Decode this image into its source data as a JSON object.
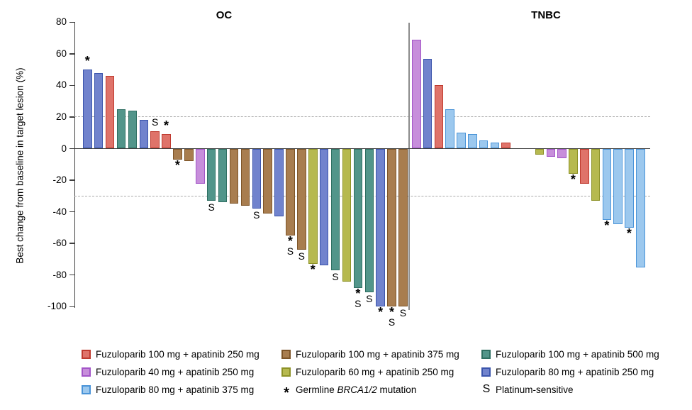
{
  "chart_data": {
    "type": "bar",
    "subtype": "waterfall",
    "title": "",
    "ylabel": "Best change from baseline in target lesion (%)",
    "ylim": [
      -100,
      80
    ],
    "yticks": [
      80,
      60,
      40,
      20,
      0,
      -20,
      -40,
      -60,
      -80,
      -100
    ],
    "reference_lines": [
      20,
      -30
    ],
    "grid": false,
    "legend_position": "bottom",
    "groups": {
      "f100a250": {
        "label": "Fuzuloparib 100 mg + apatinib 250 mg",
        "fill": "#DF736A",
        "border": "#BF3A2F"
      },
      "f100a375": {
        "label": "Fuzuloparib 100 mg + apatinib 375 mg",
        "fill": "#A87D4F",
        "border": "#7D5428"
      },
      "f100a500": {
        "label": "Fuzuloparib 100 mg + apatinib 500 mg",
        "fill": "#52958A",
        "border": "#2E6F62"
      },
      "f40a250": {
        "label": "Fuzuloparib 40 mg + apatinib 250 mg",
        "fill": "#C78EDB",
        "border": "#A355C8"
      },
      "f60a250": {
        "label": "Fuzuloparib 60 mg + apatinib 250 mg",
        "fill": "#B6B94F",
        "border": "#8D9227"
      },
      "f80a250": {
        "label": "Fuzuloparib 80 mg + apatinib 250 mg",
        "fill": "#7183CD",
        "border": "#3B55AC"
      },
      "f80a375": {
        "label": "Fuzuloparib 80 mg + apatinib 375 mg",
        "fill": "#9CC8EE",
        "border": "#4A94D8"
      }
    },
    "symbols": {
      "star_char": "*",
      "star_label": "Germline BRCA1/2 mutation",
      "s_char": "S",
      "s_label": "Platinum-sensitive"
    },
    "panels": [
      {
        "title": "OC",
        "bars": [
          {
            "v": 50,
            "g": "f80a250",
            "star": true
          },
          {
            "v": 48,
            "g": "f80a250"
          },
          {
            "v": 46,
            "g": "f100a250"
          },
          {
            "v": 25,
            "g": "f100a500"
          },
          {
            "v": 24,
            "g": "f100a500"
          },
          {
            "v": 18,
            "g": "f80a250"
          },
          {
            "v": 11,
            "g": "f100a250",
            "s": true
          },
          {
            "v": 9,
            "g": "f100a250",
            "star": true
          },
          {
            "v": -7,
            "g": "f100a375",
            "star": true
          },
          {
            "v": -8,
            "g": "f100a375"
          },
          {
            "v": -22,
            "g": "f40a250"
          },
          {
            "v": -33,
            "g": "f100a500",
            "s": true
          },
          {
            "v": -34,
            "g": "f100a500"
          },
          {
            "v": -35,
            "g": "f100a375"
          },
          {
            "v": -36,
            "g": "f100a375"
          },
          {
            "v": -38,
            "g": "f80a250",
            "s": true
          },
          {
            "v": -41,
            "g": "f100a375"
          },
          {
            "v": -43,
            "g": "f80a250"
          },
          {
            "v": -55,
            "g": "f100a375",
            "star": true,
            "s": true
          },
          {
            "v": -64,
            "g": "f100a375",
            "s": true
          },
          {
            "v": -73,
            "g": "f60a250",
            "star": true
          },
          {
            "v": -74,
            "g": "f80a250"
          },
          {
            "v": -77,
            "g": "f100a500",
            "s": true
          },
          {
            "v": -84,
            "g": "f60a250"
          },
          {
            "v": -88,
            "g": "f100a500",
            "star": true,
            "s": true
          },
          {
            "v": -91,
            "g": "f100a500",
            "s": true
          },
          {
            "v": -100,
            "g": "f80a250",
            "star": true
          },
          {
            "v": -100,
            "g": "f100a375",
            "star": true,
            "s": true
          },
          {
            "v": -100,
            "g": "f100a375",
            "s": true
          }
        ]
      },
      {
        "title": "TNBC",
        "bars": [
          {
            "v": 69,
            "g": "f40a250"
          },
          {
            "v": 57,
            "g": "f80a250"
          },
          {
            "v": 40,
            "g": "f100a250"
          },
          {
            "v": 25,
            "g": "f80a375"
          },
          {
            "v": 10,
            "g": "f80a375"
          },
          {
            "v": 9,
            "g": "f80a375"
          },
          {
            "v": 5,
            "g": "f80a375"
          },
          {
            "v": 4,
            "g": "f80a375"
          },
          {
            "v": 4,
            "g": "f100a250"
          },
          {
            "v": 0,
            "g": null
          },
          {
            "v": 0,
            "g": null
          },
          {
            "v": -4,
            "g": "f60a250"
          },
          {
            "v": -5,
            "g": "f40a250"
          },
          {
            "v": -6,
            "g": "f40a250"
          },
          {
            "v": -16,
            "g": "f60a250",
            "star": true
          },
          {
            "v": -22,
            "g": "f100a250"
          },
          {
            "v": -33,
            "g": "f60a250"
          },
          {
            "v": -45,
            "g": "f80a375",
            "star": true
          },
          {
            "v": -48,
            "g": "f80a375"
          },
          {
            "v": -50,
            "g": "f80a375",
            "star": true
          },
          {
            "v": -75,
            "g": "f80a375"
          }
        ]
      }
    ]
  },
  "legend": {
    "columns": [
      [
        {
          "swatch": "f100a250"
        },
        {
          "swatch": "f40a250"
        },
        {
          "swatch": "f80a375"
        }
      ],
      [
        {
          "swatch": "f100a375"
        },
        {
          "swatch": "f60a250"
        },
        {
          "symbol": "*",
          "label_parts": [
            "Germline ",
            "BRCA1/2",
            " mutation"
          ]
        }
      ],
      [
        {
          "swatch": "f100a500"
        },
        {
          "swatch": "f80a250"
        },
        {
          "symbol": "S",
          "label": "Platinum-sensitive"
        }
      ]
    ]
  }
}
